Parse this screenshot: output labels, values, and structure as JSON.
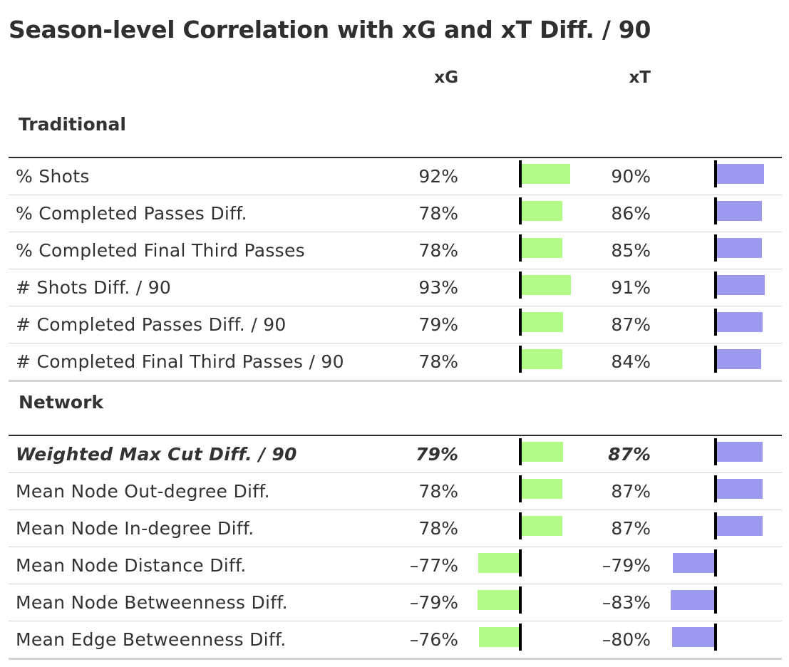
{
  "title": "Season-level Correlation with xG and xT Diff. / 90",
  "columns": {
    "xg": "xG",
    "xt": "xT"
  },
  "colors": {
    "xg_bar": "#b3fb87",
    "xt_bar": "#9b99f0",
    "zero_line": "#000000"
  },
  "chart_data": {
    "type": "table",
    "title": "Season-level Correlation with xG and xT Diff. / 90",
    "columns": [
      "xG",
      "xT"
    ],
    "groups": [
      {
        "name": "Traditional",
        "rows": [
          {
            "label": "% Shots",
            "xg": 92,
            "xt": 90,
            "xg_label": "92%",
            "xt_label": "90%",
            "bold": false
          },
          {
            "label": "% Completed Passes Diff.",
            "xg": 78,
            "xt": 86,
            "xg_label": "78%",
            "xt_label": "86%",
            "bold": false
          },
          {
            "label": "% Completed Final Third Passes",
            "xg": 78,
            "xt": 85,
            "xg_label": "78%",
            "xt_label": "85%",
            "bold": false
          },
          {
            "label": "# Shots Diff. / 90",
            "xg": 93,
            "xt": 91,
            "xg_label": "93%",
            "xt_label": "91%",
            "bold": false
          },
          {
            "label": "# Completed Passes Diff. / 90",
            "xg": 79,
            "xt": 87,
            "xg_label": "79%",
            "xt_label": "87%",
            "bold": false
          },
          {
            "label": "# Completed Final Third Passes / 90",
            "xg": 78,
            "xt": 84,
            "xg_label": "78%",
            "xt_label": "84%",
            "bold": false
          }
        ]
      },
      {
        "name": "Network",
        "rows": [
          {
            "label": "Weighted Max Cut Diff. / 90",
            "xg": 79,
            "xt": 87,
            "xg_label": "79%",
            "xt_label": "87%",
            "bold": true
          },
          {
            "label": "Mean Node Out-degree Diff.",
            "xg": 78,
            "xt": 87,
            "xg_label": "78%",
            "xt_label": "87%",
            "bold": false
          },
          {
            "label": "Mean Node In-degree Diff.",
            "xg": 78,
            "xt": 87,
            "xg_label": "78%",
            "xt_label": "87%",
            "bold": false
          },
          {
            "label": "Mean Node Distance Diff.",
            "xg": -77,
            "xt": -79,
            "xg_label": "–77%",
            "xt_label": "–79%",
            "bold": false
          },
          {
            "label": "Mean Node Betweenness Diff.",
            "xg": -79,
            "xt": -83,
            "xg_label": "–79%",
            "xt_label": "–83%",
            "bold": false
          },
          {
            "label": "Mean Edge Betweenness Diff.",
            "xg": -76,
            "xt": -80,
            "xg_label": "–76%",
            "xt_label": "–80%",
            "bold": false
          }
        ]
      }
    ]
  }
}
